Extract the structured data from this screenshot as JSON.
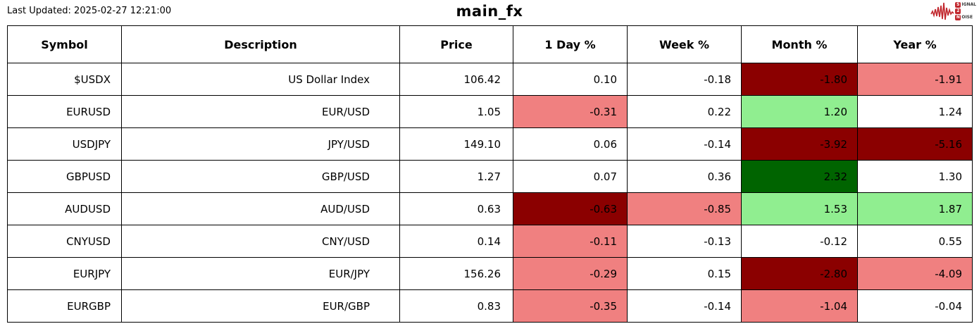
{
  "header": {
    "last_updated": "Last Updated: 2025-02-27 12:21:00",
    "title": "main_fx",
    "logo": {
      "icon": "signal-waveform-icon",
      "line1_badge": "S",
      "line1_rest": "IGNAL",
      "line2_badge": "2",
      "line3_badge": "N",
      "line3_rest": "OISE"
    }
  },
  "colors": {
    "darkred": "#8B0000",
    "lightred": "#F08080",
    "darkgreen": "#006400",
    "lightgreen": "#90EE90",
    "logo_red": "#C1272D",
    "border": "#000000"
  },
  "chart_data": {
    "type": "table",
    "title": "main_fx",
    "columns": [
      "Symbol",
      "Description",
      "Price",
      "1 Day %",
      "Week %",
      "Month %",
      "Year %"
    ],
    "rows": [
      {
        "symbol": "$USDX",
        "description": "US Dollar Index",
        "price": "106.42",
        "day": "0.10",
        "week": "-0.18",
        "month": "-1.80",
        "year": "-1.91",
        "day_bg": null,
        "week_bg": null,
        "month_bg": "darkred",
        "year_bg": "lightred"
      },
      {
        "symbol": "EURUSD",
        "description": "EUR/USD",
        "price": "1.05",
        "day": "-0.31",
        "week": "0.22",
        "month": "1.20",
        "year": "1.24",
        "day_bg": "lightred",
        "week_bg": null,
        "month_bg": "lightgreen",
        "year_bg": null
      },
      {
        "symbol": "USDJPY",
        "description": "JPY/USD",
        "price": "149.10",
        "day": "0.06",
        "week": "-0.14",
        "month": "-3.92",
        "year": "-5.16",
        "day_bg": null,
        "week_bg": null,
        "month_bg": "darkred",
        "year_bg": "darkred"
      },
      {
        "symbol": "GBPUSD",
        "description": "GBP/USD",
        "price": "1.27",
        "day": "0.07",
        "week": "0.36",
        "month": "2.32",
        "year": "1.30",
        "day_bg": null,
        "week_bg": null,
        "month_bg": "darkgreen",
        "year_bg": null
      },
      {
        "symbol": "AUDUSD",
        "description": "AUD/USD",
        "price": "0.63",
        "day": "-0.63",
        "week": "-0.85",
        "month": "1.53",
        "year": "1.87",
        "day_bg": "darkred",
        "week_bg": "lightred",
        "month_bg": "lightgreen",
        "year_bg": "lightgreen"
      },
      {
        "symbol": "CNYUSD",
        "description": "CNY/USD",
        "price": "0.14",
        "day": "-0.11",
        "week": "-0.13",
        "month": "-0.12",
        "year": "0.55",
        "day_bg": "lightred",
        "week_bg": null,
        "month_bg": null,
        "year_bg": null
      },
      {
        "symbol": "EURJPY",
        "description": "EUR/JPY",
        "price": "156.26",
        "day": "-0.29",
        "week": "0.15",
        "month": "-2.80",
        "year": "-4.09",
        "day_bg": "lightred",
        "week_bg": null,
        "month_bg": "darkred",
        "year_bg": "lightred"
      },
      {
        "symbol": "EURGBP",
        "description": "EUR/GBP",
        "price": "0.83",
        "day": "-0.35",
        "week": "-0.14",
        "month": "-1.04",
        "year": "-0.04",
        "day_bg": "lightred",
        "week_bg": null,
        "month_bg": "lightred",
        "year_bg": null
      }
    ]
  }
}
